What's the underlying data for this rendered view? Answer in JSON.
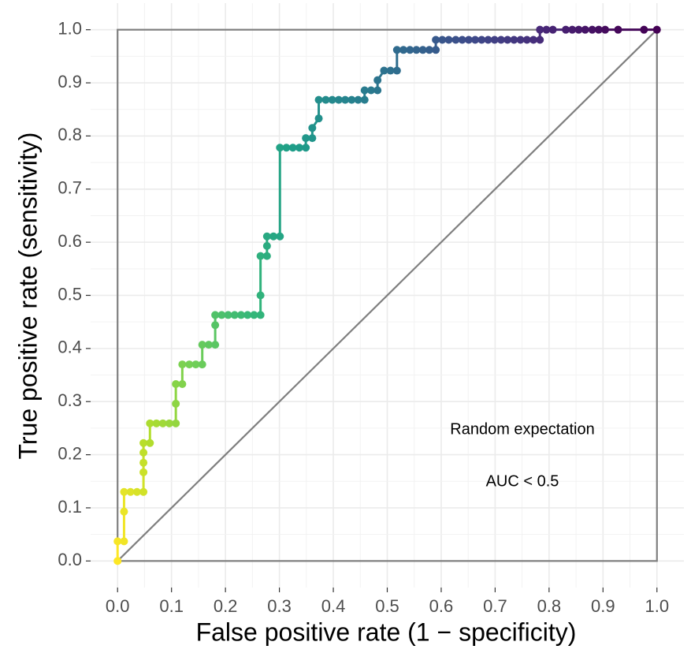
{
  "chart_data": {
    "type": "roc",
    "x_label": "False positive rate (1 − specificity)",
    "y_label": "True positive rate (sensitivity)",
    "annotations": [
      "Random expectation",
      "AUC < 0.5"
    ],
    "x": [
      0,
      0,
      0.012,
      0.012,
      0.012,
      0.024,
      0.036,
      0.048,
      0.048,
      0.048,
      0.048,
      0.048,
      0.06,
      0.06,
      0.072,
      0.084,
      0.096,
      0.108,
      0.108,
      0.108,
      0.12,
      0.12,
      0.133,
      0.145,
      0.157,
      0.157,
      0.169,
      0.181,
      0.181,
      0.181,
      0.193,
      0.205,
      0.217,
      0.229,
      0.241,
      0.253,
      0.265,
      0.265,
      0.265,
      0.277,
      0.277,
      0.277,
      0.289,
      0.301,
      0.301,
      0.313,
      0.325,
      0.337,
      0.349,
      0.349,
      0.361,
      0.361,
      0.373,
      0.373,
      0.386,
      0.398,
      0.41,
      0.422,
      0.434,
      0.446,
      0.458,
      0.458,
      0.47,
      0.482,
      0.482,
      0.494,
      0.506,
      0.518,
      0.518,
      0.53,
      0.542,
      0.554,
      0.566,
      0.578,
      0.59,
      0.59,
      0.602,
      0.614,
      0.627,
      0.639,
      0.651,
      0.663,
      0.675,
      0.687,
      0.699,
      0.711,
      0.723,
      0.735,
      0.747,
      0.759,
      0.771,
      0.783,
      0.783,
      0.795,
      0.807,
      0.831,
      0.843,
      0.855,
      0.867,
      0.88,
      0.892,
      0.904,
      0.928,
      0.976,
      1.0
    ],
    "y": [
      0,
      0.037,
      0.037,
      0.093,
      0.13,
      0.13,
      0.13,
      0.13,
      0.167,
      0.185,
      0.204,
      0.222,
      0.222,
      0.259,
      0.259,
      0.259,
      0.259,
      0.259,
      0.296,
      0.333,
      0.333,
      0.37,
      0.37,
      0.37,
      0.37,
      0.407,
      0.407,
      0.407,
      0.444,
      0.463,
      0.463,
      0.463,
      0.463,
      0.463,
      0.463,
      0.463,
      0.463,
      0.5,
      0.574,
      0.574,
      0.593,
      0.611,
      0.611,
      0.611,
      0.778,
      0.778,
      0.778,
      0.778,
      0.778,
      0.796,
      0.796,
      0.815,
      0.833,
      0.868,
      0.868,
      0.868,
      0.868,
      0.868,
      0.868,
      0.868,
      0.868,
      0.886,
      0.886,
      0.886,
      0.905,
      0.923,
      0.923,
      0.923,
      0.962,
      0.962,
      0.962,
      0.962,
      0.962,
      0.962,
      0.962,
      0.981,
      0.981,
      0.981,
      0.981,
      0.981,
      0.981,
      0.981,
      0.981,
      0.981,
      0.981,
      0.981,
      0.981,
      0.981,
      0.981,
      0.981,
      0.981,
      0.981,
      1.0,
      1.0,
      1.0,
      1.0,
      1.0,
      1.0,
      1.0,
      1.0,
      1.0,
      1.0,
      1.0,
      1.0,
      1.0
    ],
    "color_scale": [
      "#fde725",
      "#b5de2b",
      "#6ece58",
      "#35b779",
      "#1f9e89",
      "#26828e",
      "#31688e",
      "#3e4989",
      "#482878",
      "#440154"
    ],
    "reference_color": "#7f7f7f",
    "xlim": [
      -0.05,
      1.05
    ],
    "ylim": [
      -0.05,
      1.05
    ],
    "xticks": [
      {
        "value": 0,
        "label": "0.0"
      },
      0.1,
      0.2,
      0.3,
      0.4,
      0.5,
      0.6,
      0.7,
      0.8,
      0.9,
      {
        "value": 1,
        "label": "1.0"
      }
    ],
    "yticks": [
      {
        "value": 0,
        "label": "0.0"
      },
      0.1,
      0.2,
      0.3,
      0.4,
      0.5,
      0.6,
      0.7,
      0.8,
      0.9,
      {
        "value": 1,
        "label": "1.0"
      }
    ],
    "grid": true,
    "minor_grid": true
  }
}
